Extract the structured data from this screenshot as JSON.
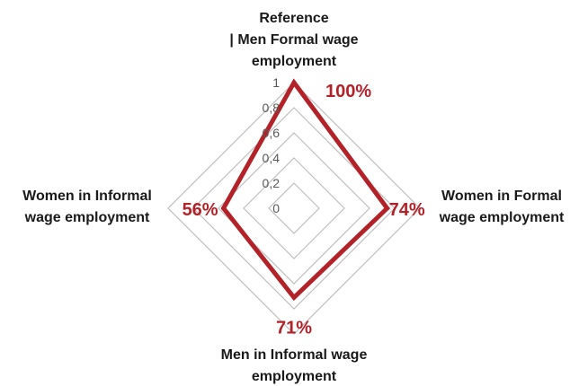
{
  "chart_data": {
    "type": "radar",
    "axes": [
      [
        "Reference",
        "| Men Formal wage",
        "employment"
      ],
      [
        "Women in Formal",
        "wage employment"
      ],
      [
        "Men in Informal wage",
        "employment"
      ],
      [
        "Women in Informal",
        "wage employment"
      ]
    ],
    "ticks": [
      "0",
      "0,2",
      "0,4",
      "0,6",
      "0,8",
      "1"
    ],
    "rmin": 0,
    "rmax": 1,
    "series": [
      {
        "values": [
          1.0,
          0.74,
          0.71,
          0.56
        ],
        "labels": [
          "100%",
          "74%",
          "71%",
          "56%"
        ]
      }
    ],
    "colors": {
      "series": "#b22228",
      "grid": "#bfbfbf",
      "text": "#1a1a1a",
      "tick": "#595959"
    },
    "legend": false
  }
}
